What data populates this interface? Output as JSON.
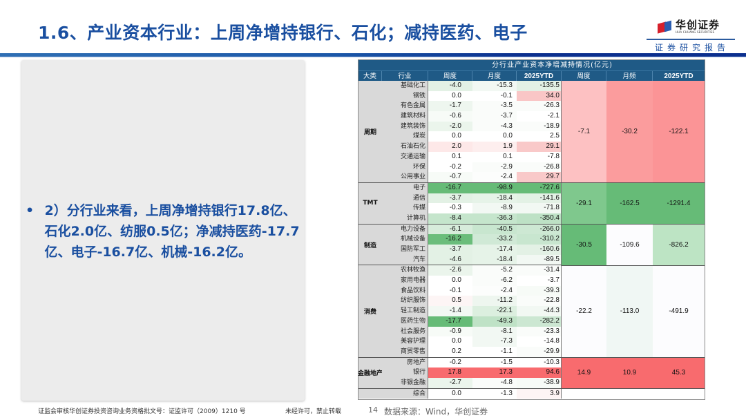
{
  "header": {
    "title": "1.6、产业资本行业：上周净增持银行、石化；减持医药、电子",
    "logo_cn": "华创证券",
    "logo_en": "HUA CHUANG SECURITIES",
    "subtitle": "证券研究报告"
  },
  "left_panel": {
    "bullet": "•",
    "text": "2）分行业来看，上周净增持银行17.8亿、石化2.0亿、纺服0.5亿；净减持医药-17.7亿、电子-16.7亿、机械-16.2亿。"
  },
  "table": {
    "title": "分行业产业资本净增减持情况(亿元)",
    "headers": [
      "大类",
      "行业",
      "周度",
      "月度",
      "2025YTD",
      "周度",
      "月频",
      "2025YTD"
    ],
    "groups": [
      {
        "category": "周期",
        "rows": [
          {
            "industry": "基础化工",
            "week": "-4.0",
            "month": "-15.3",
            "ytd": "-135.5",
            "cw": "#e3f1e5",
            "cm": "#f2f8f3",
            "cy": "#e3f1e5"
          },
          {
            "industry": "钢铁",
            "week": "0.0",
            "month": "-0.1",
            "ytd": "34.0",
            "cw": "#ffffff",
            "cm": "#ffffff",
            "cy": "#f9c6c6"
          },
          {
            "industry": "有色金属",
            "week": "-1.7",
            "month": "-3.5",
            "ytd": "-26.3",
            "cw": "#eef6ef",
            "cm": "#fafcfa",
            "cy": "#fafcfa"
          },
          {
            "industry": "建筑材料",
            "week": "-0.6",
            "month": "-3.7",
            "ytd": "-2.1",
            "cw": "#f7fbf7",
            "cm": "#fafcfa",
            "cy": "#ffffff"
          },
          {
            "industry": "建筑装饰",
            "week": "-2.0",
            "month": "-4.3",
            "ytd": "-18.9",
            "cw": "#ebf5ec",
            "cm": "#fafcfa",
            "cy": "#fafcfa"
          },
          {
            "industry": "煤炭",
            "week": "0.0",
            "month": "0.0",
            "ytd": "2.5",
            "cw": "#ffffff",
            "cm": "#ffffff",
            "cy": "#ffffff"
          },
          {
            "industry": "石油石化",
            "week": "2.0",
            "month": "1.9",
            "ytd": "29.1",
            "cw": "#fde8e8",
            "cm": "#fdeeee",
            "cy": "#f9c9c9"
          },
          {
            "industry": "交通运输",
            "week": "0.1",
            "month": "0.1",
            "ytd": "-7.8",
            "cw": "#ffffff",
            "cm": "#ffffff",
            "cy": "#ffffff"
          },
          {
            "industry": "环保",
            "week": "-0.2",
            "month": "-2.9",
            "ytd": "-26.8",
            "cw": "#ffffff",
            "cm": "#fafcfa",
            "cy": "#fafcfa"
          },
          {
            "industry": "公用事业",
            "week": "-0.7",
            "month": "-2.4",
            "ytd": "29.7",
            "cw": "#f7fbf7",
            "cm": "#fcfdfc",
            "cy": "#f9c9c9"
          }
        ],
        "agg": {
          "week": "-7.1",
          "month": "-30.2",
          "ytd": "-122.1",
          "cw": "#fdc1c2",
          "cm": "#fb9c9d",
          "cy": "#fb9496"
        }
      },
      {
        "category": "TMT",
        "rows": [
          {
            "industry": "电子",
            "week": "-16.7",
            "month": "-98.9",
            "ytd": "-727.6",
            "cw": "#66bb77",
            "cm": "#66bb77",
            "cy": "#66bb77"
          },
          {
            "industry": "通信",
            "week": "-3.7",
            "month": "-18.4",
            "ytd": "-141.6",
            "cw": "#e3f1e5",
            "cm": "#e6f3e8",
            "cy": "#e3f1e5"
          },
          {
            "industry": "传媒",
            "week": "-0.3",
            "month": "-8.9",
            "ytd": "-71.8",
            "cw": "#ffffff",
            "cm": "#f2f8f3",
            "cy": "#f2f8f3"
          },
          {
            "industry": "计算机",
            "week": "-8.4",
            "month": "-36.3",
            "ytd": "-350.4",
            "cw": "#c5e5cc",
            "cm": "#c5e5cc",
            "cy": "#bde1c5"
          }
        ],
        "agg": {
          "week": "-29.1",
          "month": "-162.5",
          "ytd": "-1291.4",
          "cw": "#7fc88d",
          "cm": "#66bb77",
          "cy": "#66bb77"
        }
      },
      {
        "category": "制造",
        "rows": [
          {
            "industry": "电力设备",
            "week": "-6.1",
            "month": "-40.5",
            "ytd": "-266.0",
            "cw": "#d7ecdb",
            "cm": "#c8e6cf",
            "cy": "#cde8d3"
          },
          {
            "industry": "机械设备",
            "week": "-16.2",
            "month": "-33.2",
            "ytd": "-310.2",
            "cw": "#6bbd7b",
            "cm": "#d0e9d6",
            "cy": "#c8e6cf"
          },
          {
            "industry": "国防军工",
            "week": "-3.7",
            "month": "-17.4",
            "ytd": "-160.6",
            "cw": "#e3f1e5",
            "cm": "#e6f3e8",
            "cy": "#e3f1e5"
          },
          {
            "industry": "汽车",
            "week": "-4.6",
            "month": "-18.4",
            "ytd": "-89.5",
            "cw": "#e3f1e5",
            "cm": "#e6f3e8",
            "cy": "#f2f8f3"
          }
        ],
        "agg": {
          "week": "-30.5",
          "month": "-109.6",
          "ytd": "-826.2",
          "cw": "#66bb77",
          "cm": "#fcfcfe",
          "cy": "#bde4c4"
        }
      },
      {
        "category": "消费",
        "rows": [
          {
            "industry": "农林牧渔",
            "week": "-2.6",
            "month": "-5.2",
            "ytd": "-31.4",
            "cw": "#ebf5ec",
            "cm": "#fafcfa",
            "cy": "#fafcfa"
          },
          {
            "industry": "家用电器",
            "week": "0.0",
            "month": "-6.2",
            "ytd": "-3.7",
            "cw": "#ffffff",
            "cm": "#fafcfa",
            "cy": "#ffffff"
          },
          {
            "industry": "食品饮料",
            "week": "-0.1",
            "month": "-2.4",
            "ytd": "-39.3",
            "cw": "#ffffff",
            "cm": "#fcfdfc",
            "cy": "#f7fbf7"
          },
          {
            "industry": "纺织服饰",
            "week": "0.5",
            "month": "-11.2",
            "ytd": "-22.8",
            "cw": "#fdf5f5",
            "cm": "#eef6ef",
            "cy": "#fafcfa"
          },
          {
            "industry": "轻工制造",
            "week": "-1.4",
            "month": "-22.1",
            "ytd": "-44.3",
            "cw": "#f2f8f3",
            "cm": "#dcefdf",
            "cy": "#f2f8f3"
          },
          {
            "industry": "医药生物",
            "week": "-17.7",
            "month": "-49.3",
            "ytd": "-282.2",
            "cw": "#66bb77",
            "cm": "#bfe2c6",
            "cy": "#cce7d2"
          },
          {
            "industry": "社会服务",
            "week": "-0.9",
            "month": "-8.1",
            "ytd": "-23.3",
            "cw": "#f7fbf7",
            "cm": "#f2f8f3",
            "cy": "#fafcfa"
          },
          {
            "industry": "美容护理",
            "week": "0.0",
            "month": "-7.3",
            "ytd": "-14.8",
            "cw": "#ffffff",
            "cm": "#f2f8f3",
            "cy": "#ffffff"
          },
          {
            "industry": "商贸零售",
            "week": "0.2",
            "month": "-1.1",
            "ytd": "-29.9",
            "cw": "#ffffff",
            "cm": "#ffffff",
            "cy": "#fafcfa"
          }
        ],
        "agg": {
          "week": "-22.2",
          "month": "-113.0",
          "ytd": "-491.9",
          "cw": "#fcfcfe",
          "cm": "#f0f7f4",
          "cy": "#fcfcfe"
        }
      },
      {
        "category": "金融地产",
        "rows": [
          {
            "industry": "房地产",
            "week": "-0.2",
            "month": "-1.5",
            "ytd": "-10.3",
            "cw": "#ffffff",
            "cm": "#ffffff",
            "cy": "#ffffff"
          },
          {
            "industry": "银行",
            "week": "17.8",
            "month": "17.3",
            "ytd": "94.6",
            "cw": "#f86b6e",
            "cm": "#f86b6e",
            "cy": "#f86b6e"
          },
          {
            "industry": "非银金融",
            "week": "-2.7",
            "month": "-4.8",
            "ytd": "-38.9",
            "cw": "#ebf5ec",
            "cm": "#fafcfa",
            "cy": "#f7fbf7"
          }
        ],
        "agg": {
          "week": "14.9",
          "month": "10.9",
          "ytd": "45.3",
          "cw": "#f86b6e",
          "cm": "#f86b6e",
          "cy": "#f86b6e"
        }
      },
      {
        "category": "",
        "rows": [
          {
            "industry": "综合",
            "week": "0.0",
            "month": "-1.3",
            "ytd": "3.9",
            "cw": "#ffffff",
            "cm": "#ffffff",
            "cy": "#fdf4f4"
          }
        ],
        "agg": {
          "week": "",
          "month": "",
          "ytd": "",
          "cw": "#ffffff",
          "cm": "#ffffff",
          "cy": "#ffffff"
        }
      }
    ]
  },
  "footer": {
    "license": "证监会审核华创证券投资咨询业务资格批文号：证监许可（2009）1210 号",
    "notice": "未经许可，禁止转载",
    "page": "14",
    "source": "数据来源：Wind，华创证券"
  }
}
